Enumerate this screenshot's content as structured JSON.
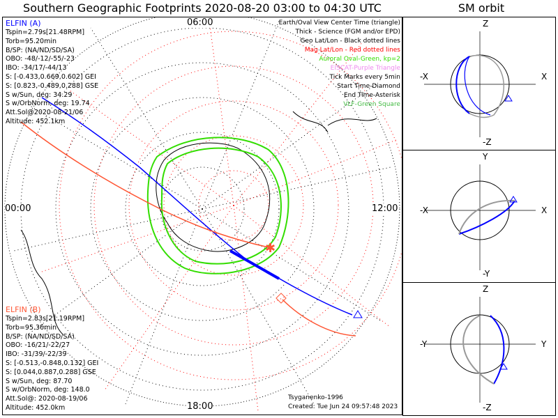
{
  "title": "Southern Geographic Footprints 2020-08-20 03:00 to 04:30 UTC",
  "sm_title": "SM orbit",
  "elfin_a": {
    "name": "ELFIN (A)",
    "lines": [
      "Tspin=2.79s[21.48RPM]",
      "Torb=95.20min",
      "B/SP: (NA/ND/SD/SA)",
      "OBO: -48/-12/-55/-23",
      "IBO: -34/17/-44/13",
      "S: [-0.433,0.669,0.602] GEI",
      "S: [0.823,-0.489,0.288] GSE",
      "S w/Sun, deg: 34.29",
      "S w/OrbNorm, deg: 19.74",
      "Att.Sol@2020-08-21/06",
      "Altitude: 452.1km"
    ]
  },
  "elfin_b": {
    "name": "ELFIN (B)",
    "lines": [
      "Tspin=2.83s[21.19RPM]",
      "Torb=95.36min",
      "B/SP: (NA/ND/SD/SA)",
      "OBO: -16/21/-22/27",
      "IBO: -31/39/-22/39",
      "S: [-0.513,-0.848,0.132] GEI",
      "S: [0.044,0.887,0.288] GSE",
      "S w/Sun, deg: 87.70",
      "S w/OrbNorm, deg: 148.0",
      "Att.Sol@: 2020-08-19/06",
      "Altitude: 452.0km"
    ]
  },
  "legend": [
    {
      "text": "Earth/Oval View Center Time (triangle)",
      "color": "#000000"
    },
    {
      "text": "Thick - Science (FGM and/or EPD)",
      "color": "#000000"
    },
    {
      "text": "Geo Lat/Lon - Black dotted lines",
      "color": "#000000"
    },
    {
      "text": "Mag Lat/Lon - Red dotted lines",
      "color": "#ff0000"
    },
    {
      "text": "Auroral Oval-Green, kp=2",
      "color": "#33dd00"
    },
    {
      "text": "EISCAT-Purple Triangle",
      "color": "#ee88ee"
    },
    {
      "text": "Tick Marks every 5min",
      "color": "#000000"
    },
    {
      "text": "Start Time-Diamond",
      "color": "#000000"
    },
    {
      "text": "End Time-Asterisk",
      "color": "#000000"
    },
    {
      "text": "VLF-Green Square",
      "color": "#44bb44"
    }
  ],
  "hours": {
    "top": "06:00",
    "left": "00:00",
    "right": "12:00",
    "bottom": "18:00"
  },
  "footer": {
    "model": "Tsyganenko-1996",
    "created": "Created: Tue Jun 24 09:57:48 2023"
  },
  "sm_panels": [
    {
      "top": "Z",
      "bottom": "-Z",
      "left": "-X",
      "right": "X"
    },
    {
      "top": "Y",
      "bottom": "-Y",
      "left": "-X",
      "right": "X"
    },
    {
      "top": "Z",
      "bottom": "-Z",
      "left": "-Y",
      "right": "Y"
    }
  ],
  "colors": {
    "elfin_a": "#0000ff",
    "elfin_b": "#ff5533",
    "oval": "#33dd00",
    "mag_grid": "#ff0000",
    "geo_grid": "#000000"
  }
}
